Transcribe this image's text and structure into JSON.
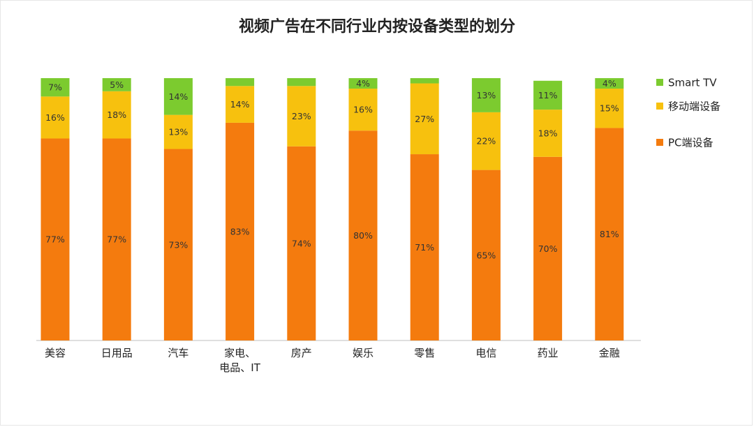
{
  "title": "视频广告在不同行业内按设备类型的划分",
  "chart_data": {
    "type": "bar",
    "stacked": true,
    "title": "视频广告在不同行业内按设备类型的划分",
    "categories": [
      [
        "美容"
      ],
      [
        "日用品"
      ],
      [
        "汽车"
      ],
      [
        "家电、",
        "电品、IT"
      ],
      [
        "房产"
      ],
      [
        "娱乐"
      ],
      [
        "零售"
      ],
      [
        "电信"
      ],
      [
        "药业"
      ],
      [
        "金融"
      ]
    ],
    "ylim": [
      0,
      100
    ],
    "series": [
      {
        "name": "PC端设备",
        "color": "#F47B0E",
        "values": [
          77,
          77,
          73,
          83,
          74,
          80,
          71,
          65,
          70,
          81
        ],
        "labels": [
          "77%",
          "77%",
          "73%",
          "83%",
          "74%",
          "80%",
          "71%",
          "65%",
          "70%",
          "81%"
        ]
      },
      {
        "name": "移动端设备",
        "color": "#F7C10E",
        "values": [
          16,
          18,
          13,
          14,
          23,
          16,
          27,
          22,
          18,
          15
        ],
        "labels": [
          "16%",
          "18%",
          "13%",
          "14%",
          "23%",
          "16%",
          "27%",
          "22%",
          "18%",
          "15%"
        ]
      },
      {
        "name": "Smart TV",
        "color": "#7CCB2F",
        "values": [
          7,
          5,
          14,
          3,
          3,
          4,
          2,
          13,
          11,
          4
        ],
        "labels": [
          "7%",
          "5%",
          "14%",
          "",
          "",
          "4%",
          "",
          "13%",
          "11%",
          "4%"
        ]
      }
    ],
    "legend_position": "right",
    "legend_order": [
      "Smart TV",
      "移动端设备",
      "PC端设备"
    ],
    "grid": false
  }
}
